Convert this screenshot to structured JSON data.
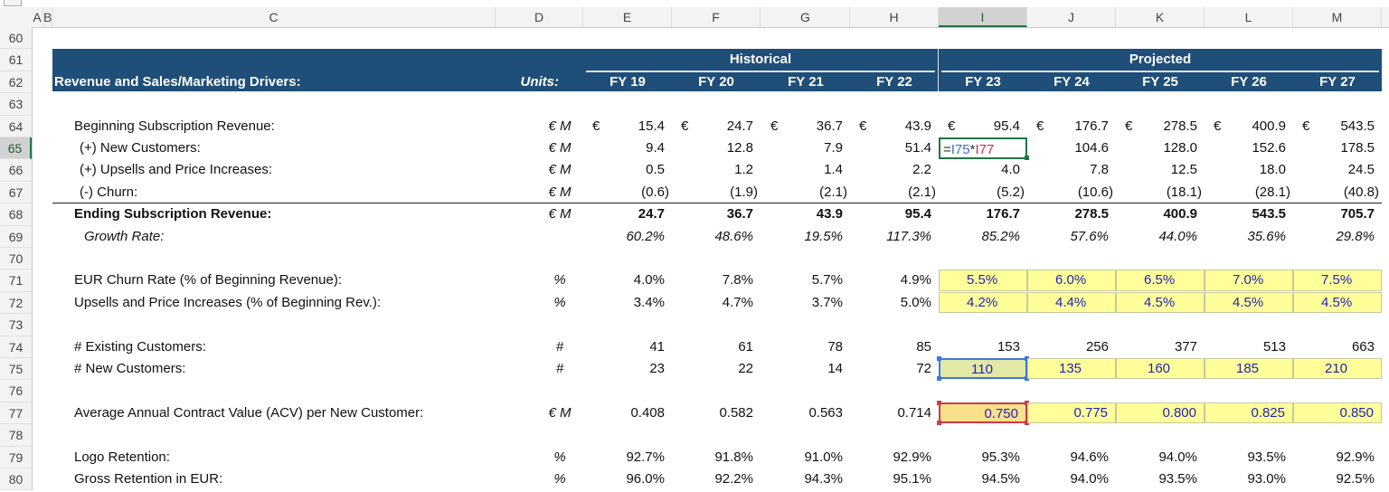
{
  "columns": [
    "A",
    "B",
    "C",
    "D",
    "E",
    "F",
    "G",
    "H",
    "I",
    "J",
    "K",
    "L",
    "M"
  ],
  "selected_column": "I",
  "selected_row": 65,
  "row_numbers": [
    60,
    61,
    62,
    63,
    64,
    65,
    66,
    67,
    68,
    69,
    70,
    71,
    72,
    73,
    74,
    75,
    76,
    77,
    78,
    79,
    80
  ],
  "header": {
    "historical": "Historical",
    "projected": "Projected",
    "title": "Revenue and Sales/Marketing Drivers:",
    "units": "Units:",
    "years": [
      "FY 19",
      "FY 20",
      "FY 21",
      "FY 22",
      "FY 23",
      "FY 24",
      "FY 25",
      "FY 26",
      "FY 27"
    ]
  },
  "colors": {
    "header_band": "#1f4e78",
    "input_fill": "#ffff99",
    "input_text": "#2222bb",
    "selection": "#217346"
  },
  "active_cell": {
    "ref": "I65",
    "formula": {
      "eq": "=",
      "ref1": "I75",
      "op": "*",
      "ref2": "I77"
    }
  },
  "rows": [
    {
      "row": 64,
      "label": "Beginning Subscription Revenue:",
      "units": "€ M",
      "euro": "€",
      "values": [
        "15.4",
        "24.7",
        "36.7",
        "43.9",
        "95.4",
        "176.7",
        "278.5",
        "400.9",
        "543.5"
      ]
    },
    {
      "row": 65,
      "label": "(+) New Customers:",
      "units": "€ M",
      "values": [
        "9.4",
        "12.8",
        "7.9",
        "51.4",
        "",
        "104.6",
        "128.0",
        "152.6",
        "178.5"
      ]
    },
    {
      "row": 66,
      "label": "(+) Upsells and Price Increases:",
      "units": "€ M",
      "values": [
        "0.5",
        "1.2",
        "1.4",
        "2.2",
        "4.0",
        "7.8",
        "12.5",
        "18.0",
        "24.5"
      ]
    },
    {
      "row": 67,
      "label": "(-) Churn:",
      "units": "€ M",
      "values": [
        "(0.6)",
        "(1.9)",
        "(2.1)",
        "(2.1)",
        "(5.2)",
        "(10.6)",
        "(18.1)",
        "(28.1)",
        "(40.8)"
      ]
    },
    {
      "row": 68,
      "label": "Ending Subscription Revenue:",
      "units": "€ M",
      "style": "bold",
      "values": [
        "24.7",
        "36.7",
        "43.9",
        "95.4",
        "176.7",
        "278.5",
        "400.9",
        "543.5",
        "705.7"
      ]
    },
    {
      "row": 69,
      "label": "Growth Rate:",
      "units": "",
      "style": "ital",
      "values": [
        "60.2%",
        "48.6%",
        "19.5%",
        "117.3%",
        "85.2%",
        "57.6%",
        "44.0%",
        "35.6%",
        "29.8%"
      ]
    },
    {
      "row": 71,
      "label": "EUR Churn Rate (% of Beginning Revenue):",
      "units": "%",
      "input": "left",
      "values": [
        "4.0%",
        "7.8%",
        "5.7%",
        "4.9%",
        "5.5%",
        "6.0%",
        "6.5%",
        "7.0%",
        "7.5%"
      ]
    },
    {
      "row": 72,
      "label": "Upsells and Price Increases (% of Beginning Rev.):",
      "units": "%",
      "input": "left",
      "values": [
        "3.4%",
        "4.7%",
        "3.7%",
        "5.0%",
        "4.2%",
        "4.4%",
        "4.5%",
        "4.5%",
        "4.5%"
      ]
    },
    {
      "row": 74,
      "label": "# Existing Customers:",
      "units": "#",
      "values": [
        "41",
        "61",
        "78",
        "85",
        "153",
        "256",
        "377",
        "513",
        "663"
      ]
    },
    {
      "row": 75,
      "label": "# New Customers:",
      "units": "#",
      "input": "mid",
      "values": [
        "23",
        "22",
        "14",
        "72",
        "110",
        "135",
        "160",
        "185",
        "210"
      ]
    },
    {
      "row": 77,
      "label": "Average Annual Contract Value (ACV) per New Customer:",
      "units": "€ M",
      "input": "right",
      "values": [
        "0.408",
        "0.582",
        "0.563",
        "0.714",
        "0.750",
        "0.775",
        "0.800",
        "0.825",
        "0.850"
      ]
    },
    {
      "row": 79,
      "label": "Logo Retention:",
      "units": "%",
      "values": [
        "92.7%",
        "91.8%",
        "91.0%",
        "92.9%",
        "95.3%",
        "94.6%",
        "94.0%",
        "93.5%",
        "92.9%"
      ]
    },
    {
      "row": 80,
      "label": "Gross Retention in EUR:",
      "units": "%",
      "values": [
        "96.0%",
        "92.2%",
        "94.3%",
        "95.1%",
        "94.5%",
        "94.0%",
        "93.5%",
        "93.0%",
        "92.5%"
      ]
    }
  ]
}
